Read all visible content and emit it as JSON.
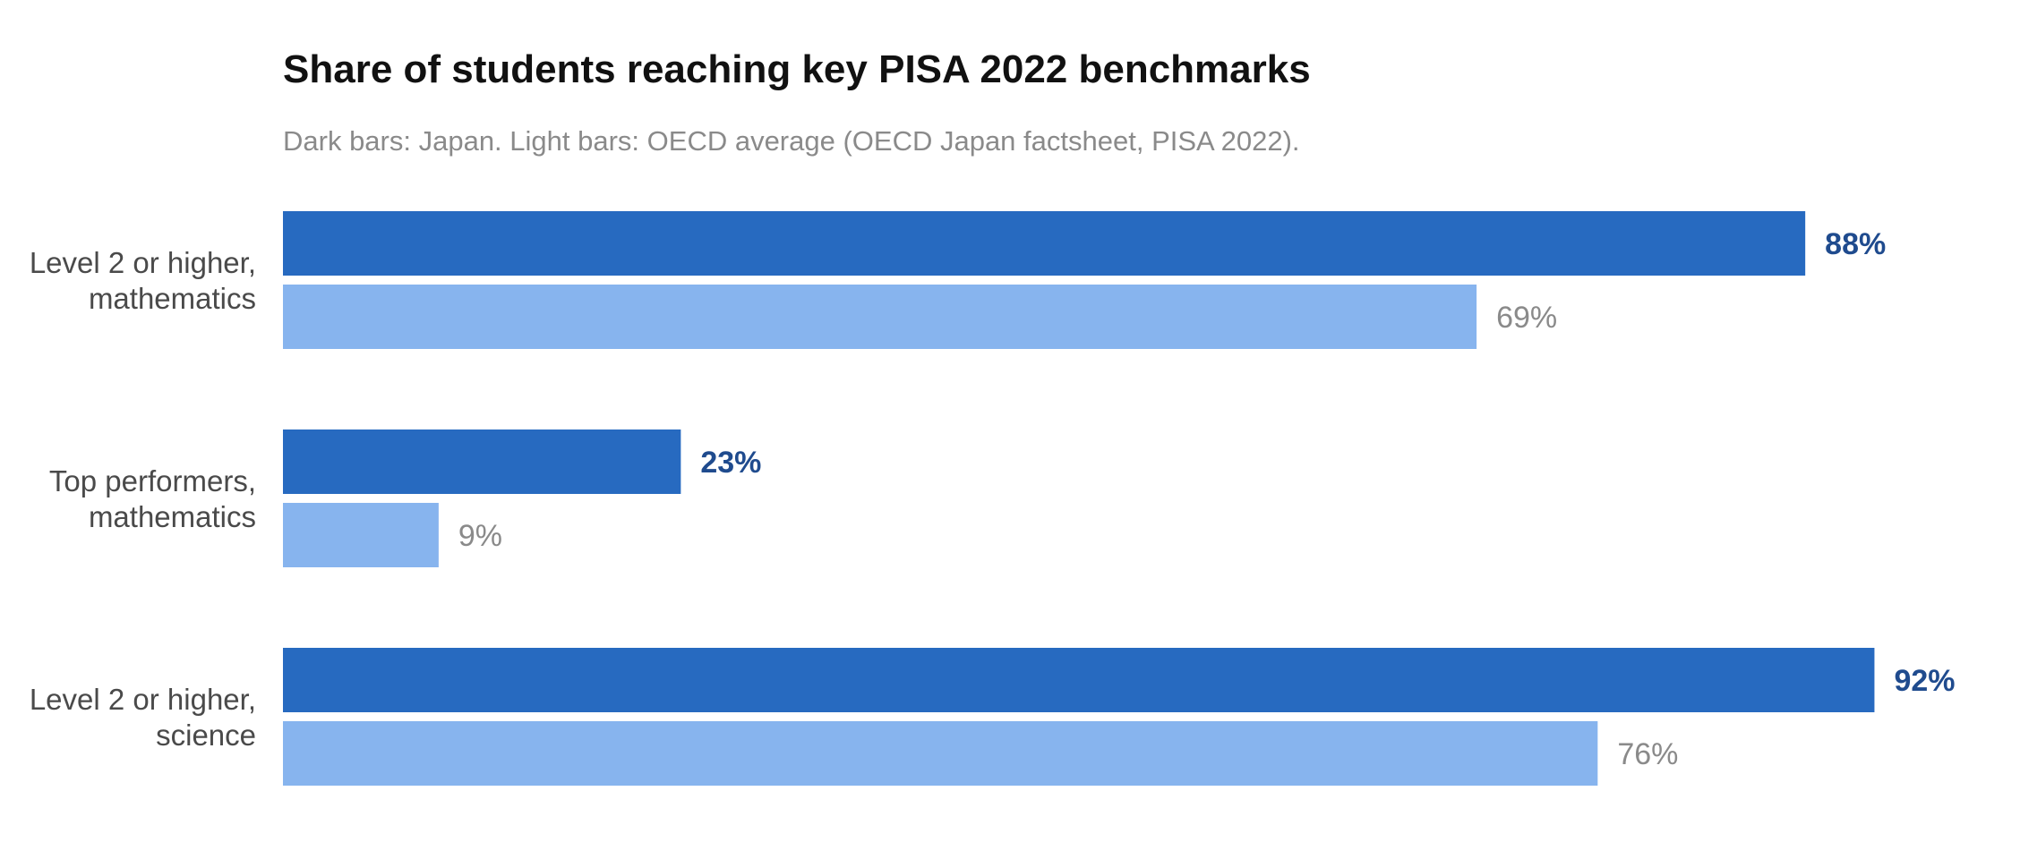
{
  "chart_data": {
    "type": "bar",
    "orientation": "horizontal",
    "title": "Share of students reaching key PISA 2022 benchmarks",
    "subtitle": "Dark bars: Japan. Light bars: OECD average (OECD Japan factsheet, PISA 2022).",
    "categories": [
      [
        "Level 2 or higher,",
        "mathematics"
      ],
      [
        "Top performers,",
        "mathematics"
      ],
      [
        "Level 2 or higher,",
        "science"
      ]
    ],
    "series": [
      {
        "key": "japan",
        "values": [
          88,
          23,
          92
        ],
        "labels": [
          "88%",
          "23%",
          "92%"
        ],
        "color": "#276AC0",
        "label_color": "#1F4B8E"
      },
      {
        "key": "oecd",
        "values": [
          69,
          9,
          76
        ],
        "labels": [
          "69%",
          "9%",
          "76%"
        ],
        "color": "#87B4EE",
        "label_color": "#8A8A8A"
      }
    ],
    "xlim": [
      0,
      100
    ],
    "grid": false,
    "legend": "none"
  }
}
